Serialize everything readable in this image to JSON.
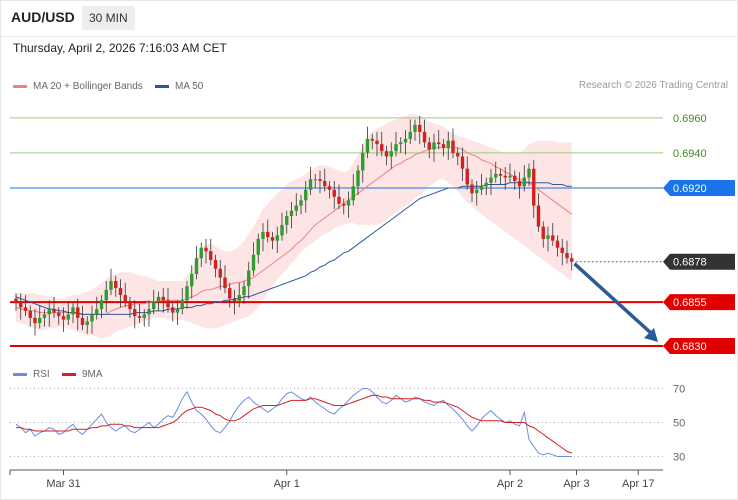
{
  "header": {
    "symbol": "AUD/USD",
    "timeframe": "30 MIN"
  },
  "datetime": "Thursday, April 2, 2026 7:16:03 AM CET",
  "copyright": "Research © 2026 Trading Central",
  "colors": {
    "ma20": "#f08080",
    "ma50": "#2c5aa0",
    "resistance": "#9acd7a",
    "pivot": "#1a73e8",
    "support": "#e00000",
    "bull": "#2e9d2e",
    "bear": "#d32020",
    "rsi": "#6a8fe0",
    "rsi_ma": "#d32020",
    "arrow": "#2c5a96"
  },
  "chart_data": [
    {
      "type": "candlestick",
      "legend": [
        {
          "name": "MA 20 + Bollinger Bands",
          "color": "#f08080"
        },
        {
          "name": "MA 50",
          "color": "#2c5aa0"
        }
      ],
      "ylim": [
        0.6822,
        0.6973
      ],
      "x_ticks": [
        {
          "label": "Mar 31",
          "index": 10
        },
        {
          "label": "Apr 1",
          "index": 57
        },
        {
          "label": "Apr 2",
          "index": 104
        },
        {
          "label": "Apr 3",
          "index": 118
        },
        {
          "label": "Apr 17",
          "index": 131
        }
      ],
      "levels": [
        {
          "label": "0.6960",
          "value": 0.696,
          "kind": "resistance"
        },
        {
          "label": "0.6940",
          "value": 0.694,
          "kind": "resistance"
        },
        {
          "label": "0.6920",
          "value": 0.692,
          "kind": "pivot"
        },
        {
          "label": "0.6878",
          "value": 0.6878,
          "kind": "last"
        },
        {
          "label": "0.6855",
          "value": 0.6855,
          "kind": "support"
        },
        {
          "label": "0.6830",
          "value": 0.683,
          "kind": "support"
        }
      ],
      "forecast_arrow": {
        "from_index": 118,
        "from": 0.6878,
        "to_index": 130,
        "to": 0.683
      },
      "close": [
        0.6855,
        0.6852,
        0.685,
        0.6846,
        0.6843,
        0.6846,
        0.6848,
        0.6851,
        0.6849,
        0.6847,
        0.6845,
        0.6848,
        0.6852,
        0.6846,
        0.6842,
        0.6844,
        0.6848,
        0.6851,
        0.6856,
        0.6862,
        0.6867,
        0.6863,
        0.6859,
        0.6855,
        0.6851,
        0.6847,
        0.6846,
        0.6848,
        0.6851,
        0.6855,
        0.6858,
        0.6856,
        0.6852,
        0.6849,
        0.6851,
        0.6856,
        0.6864,
        0.6871,
        0.688,
        0.6886,
        0.6884,
        0.6879,
        0.6874,
        0.6869,
        0.6863,
        0.6857,
        0.6855,
        0.6859,
        0.6864,
        0.6873,
        0.6882,
        0.6891,
        0.6895,
        0.6892,
        0.689,
        0.6893,
        0.6899,
        0.6904,
        0.6907,
        0.691,
        0.6913,
        0.6919,
        0.6925,
        0.6925,
        0.6924,
        0.6921,
        0.6919,
        0.6915,
        0.6911,
        0.691,
        0.6913,
        0.6921,
        0.693,
        0.694,
        0.6948,
        0.6947,
        0.6945,
        0.6941,
        0.6938,
        0.6941,
        0.6945,
        0.6946,
        0.6948,
        0.6952,
        0.6956,
        0.6952,
        0.6946,
        0.6942,
        0.6946,
        0.6945,
        0.6943,
        0.6947,
        0.694,
        0.6938,
        0.6931,
        0.6922,
        0.6917,
        0.6919,
        0.6921,
        0.6923,
        0.6926,
        0.6928,
        0.6927,
        0.6926,
        0.6927,
        0.6924,
        0.6921,
        0.6926,
        0.6931,
        0.691,
        0.6898,
        0.6891,
        0.6893,
        0.689,
        0.6886,
        0.6883,
        0.688,
        0.6878
      ],
      "ma20": [
        0.6852,
        0.6851,
        0.6851,
        0.685,
        0.685,
        0.6849,
        0.6849,
        0.6849,
        0.6849,
        0.6849,
        0.6849,
        0.6849,
        0.6849,
        0.6848,
        0.6848,
        0.6848,
        0.6848,
        0.6848,
        0.6848,
        0.6848,
        0.685,
        0.6851,
        0.6852,
        0.6853,
        0.6853,
        0.6854,
        0.6854,
        0.6854,
        0.6855,
        0.6855,
        0.6856,
        0.6856,
        0.6856,
        0.6856,
        0.6856,
        0.6856,
        0.6857,
        0.6858,
        0.6859,
        0.6861,
        0.6862,
        0.6862,
        0.6863,
        0.6864,
        0.6864,
        0.6865,
        0.6866,
        0.6866,
        0.6867,
        0.6868,
        0.6869,
        0.6871,
        0.6873,
        0.6875,
        0.6877,
        0.6879,
        0.6881,
        0.6883,
        0.6885,
        0.6888,
        0.689,
        0.6893,
        0.6896,
        0.6899,
        0.6901,
        0.6903,
        0.6905,
        0.6907,
        0.6909,
        0.6911,
        0.6913,
        0.6915,
        0.6917,
        0.6919,
        0.6921,
        0.6923,
        0.6925,
        0.6927,
        0.6929,
        0.6931,
        0.6933,
        0.6934,
        0.6936,
        0.6937,
        0.6939,
        0.694,
        0.6941,
        0.6942,
        0.6943,
        0.6943,
        0.6943,
        0.6943,
        0.6943,
        0.6943,
        0.6942,
        0.694,
        0.6939,
        0.6938,
        0.6936,
        0.6935,
        0.6934,
        0.6932,
        0.6931,
        0.6929,
        0.6928,
        0.6926,
        0.6925,
        0.6924,
        0.6923,
        0.6921,
        0.6919,
        0.6917,
        0.6915,
        0.6913,
        0.6911,
        0.6909,
        0.6907,
        0.6905
      ],
      "bb_upper": [
        0.686,
        0.686,
        0.686,
        0.686,
        0.686,
        0.6859,
        0.6859,
        0.6858,
        0.6858,
        0.6857,
        0.6857,
        0.6858,
        0.6859,
        0.6859,
        0.686,
        0.6861,
        0.6862,
        0.6864,
        0.6866,
        0.6868,
        0.687,
        0.6871,
        0.6872,
        0.6872,
        0.6872,
        0.6871,
        0.687,
        0.687,
        0.6869,
        0.6868,
        0.6867,
        0.6867,
        0.6867,
        0.6867,
        0.6867,
        0.6867,
        0.687,
        0.6874,
        0.688,
        0.6885,
        0.6888,
        0.6888,
        0.6887,
        0.6885,
        0.6884,
        0.6884,
        0.6885,
        0.6887,
        0.689,
        0.6894,
        0.6898,
        0.6903,
        0.6908,
        0.6911,
        0.6914,
        0.6917,
        0.6919,
        0.6922,
        0.6924,
        0.6925,
        0.6926,
        0.6928,
        0.693,
        0.6932,
        0.6933,
        0.6933,
        0.6932,
        0.6931,
        0.693,
        0.6929,
        0.693,
        0.6934,
        0.6939,
        0.6944,
        0.6949,
        0.6952,
        0.6954,
        0.6955,
        0.6957,
        0.6958,
        0.6959,
        0.696,
        0.6961,
        0.6962,
        0.6962,
        0.6961,
        0.696,
        0.6958,
        0.6957,
        0.6956,
        0.6955,
        0.6953,
        0.6951,
        0.695,
        0.6949,
        0.6948,
        0.6947,
        0.6946,
        0.6945,
        0.6944,
        0.6943,
        0.6942,
        0.6941,
        0.694,
        0.694,
        0.694,
        0.694,
        0.6942,
        0.6945,
        0.6946,
        0.6947,
        0.6947,
        0.6947,
        0.6947,
        0.6946,
        0.6946,
        0.6946,
        0.6946
      ],
      "bb_lower": [
        0.6844,
        0.6843,
        0.6842,
        0.6841,
        0.684,
        0.6839,
        0.6839,
        0.684,
        0.684,
        0.6841,
        0.6841,
        0.684,
        0.6839,
        0.6838,
        0.6837,
        0.6836,
        0.6836,
        0.6835,
        0.6834,
        0.6835,
        0.6836,
        0.6838,
        0.6839,
        0.684,
        0.6841,
        0.6842,
        0.6843,
        0.6844,
        0.6845,
        0.6846,
        0.6846,
        0.6846,
        0.6845,
        0.6845,
        0.6845,
        0.6845,
        0.6844,
        0.6843,
        0.6842,
        0.6841,
        0.684,
        0.684,
        0.684,
        0.6841,
        0.6842,
        0.6843,
        0.6844,
        0.6845,
        0.6846,
        0.6847,
        0.6849,
        0.6852,
        0.6856,
        0.686,
        0.6864,
        0.6868,
        0.6871,
        0.6874,
        0.6877,
        0.688,
        0.6883,
        0.6886,
        0.6888,
        0.689,
        0.6892,
        0.6894,
        0.6895,
        0.6897,
        0.6898,
        0.6899,
        0.69,
        0.69,
        0.6899,
        0.6899,
        0.6899,
        0.6899,
        0.6899,
        0.69,
        0.6902,
        0.6904,
        0.6906,
        0.6908,
        0.691,
        0.6912,
        0.6914,
        0.6916,
        0.6918,
        0.6921,
        0.6923,
        0.6925,
        0.6925,
        0.6923,
        0.6921,
        0.6918,
        0.6915,
        0.6912,
        0.691,
        0.6907,
        0.6905,
        0.6903,
        0.6901,
        0.6899,
        0.6897,
        0.6895,
        0.6893,
        0.6891,
        0.6889,
        0.6887,
        0.6885,
        0.6883,
        0.6881,
        0.6879,
        0.6877,
        0.6875,
        0.6873,
        0.6871,
        0.6869,
        0.6867
      ],
      "ma50": [
        0.6858,
        0.6857,
        0.6856,
        0.6855,
        0.6854,
        0.6853,
        0.6852,
        0.6851,
        0.6851,
        0.685,
        0.685,
        0.6849,
        0.6849,
        0.6849,
        0.6848,
        0.6848,
        0.6848,
        0.6848,
        0.6848,
        0.6848,
        0.6848,
        0.6848,
        0.6848,
        0.6848,
        0.6848,
        0.6849,
        0.6849,
        0.6849,
        0.6849,
        0.685,
        0.685,
        0.685,
        0.6851,
        0.6851,
        0.6851,
        0.6852,
        0.6852,
        0.6852,
        0.6853,
        0.6853,
        0.6854,
        0.6854,
        0.6855,
        0.6855,
        0.6856,
        0.6856,
        0.6857,
        0.6857,
        0.6858,
        0.6858,
        0.6859,
        0.686,
        0.6861,
        0.6862,
        0.6863,
        0.6864,
        0.6865,
        0.6866,
        0.6867,
        0.6868,
        0.6869,
        0.687,
        0.6872,
        0.6873,
        0.6875,
        0.6876,
        0.6878,
        0.6879,
        0.6881,
        0.6883,
        0.6884,
        0.6886,
        0.6888,
        0.689,
        0.6892,
        0.6894,
        0.6896,
        0.6898,
        0.69,
        0.6902,
        0.6904,
        0.6906,
        0.6908,
        0.691,
        0.6912,
        0.6914,
        0.6915,
        0.6916,
        0.6917,
        0.6918,
        0.6919,
        0.692,
        0.692,
        0.692,
        0.6921,
        0.6921,
        0.6921,
        0.6921,
        0.6921,
        0.6922,
        0.6922,
        0.6922,
        0.6922,
        0.6922,
        0.6923,
        0.6923,
        0.6923,
        0.6923,
        0.6923,
        0.6923,
        0.6923,
        0.6923,
        0.6923,
        0.6922,
        0.6922,
        0.6922,
        0.6921,
        0.6921
      ]
    },
    {
      "type": "line",
      "legend": [
        {
          "name": "RSI",
          "color": "#6a8fe0"
        },
        {
          "name": "9MA",
          "color": "#d32020"
        }
      ],
      "ylim": [
        25,
        75
      ],
      "y_ticks": [
        "70",
        "50",
        "30"
      ],
      "rsi": [
        49,
        47,
        44,
        46,
        42,
        44,
        45,
        47,
        46,
        43,
        44,
        47,
        49,
        45,
        43,
        46,
        49,
        52,
        55,
        50,
        47,
        45,
        47,
        48,
        45,
        44,
        46,
        48,
        50,
        47,
        49,
        52,
        54,
        53,
        58,
        64,
        68,
        62,
        57,
        55,
        52,
        48,
        45,
        44,
        47,
        51,
        56,
        60,
        63,
        65,
        62,
        60,
        58,
        56,
        58,
        60,
        64,
        67,
        68,
        66,
        64,
        63,
        65,
        62,
        60,
        58,
        56,
        55,
        58,
        60,
        63,
        66,
        68,
        70,
        70,
        68,
        65,
        62,
        61,
        63,
        66,
        64,
        62,
        63,
        65,
        64,
        62,
        61,
        60,
        62,
        63,
        60,
        58,
        55,
        52,
        48,
        45,
        48,
        52,
        55,
        57,
        54,
        52,
        50,
        51,
        49,
        48,
        56,
        40,
        36,
        32,
        31,
        32,
        31,
        30,
        30,
        30,
        30
      ],
      "ma9": [
        47,
        47,
        46,
        46,
        45,
        45,
        45,
        45,
        45,
        45,
        45,
        45,
        46,
        46,
        46,
        46,
        47,
        47,
        48,
        48,
        49,
        49,
        49,
        48,
        48,
        47,
        47,
        47,
        47,
        47,
        47,
        48,
        49,
        50,
        52,
        55,
        57,
        58,
        59,
        59,
        58,
        57,
        55,
        54,
        52,
        51,
        51,
        52,
        54,
        56,
        58,
        59,
        60,
        60,
        60,
        60,
        61,
        62,
        63,
        63,
        63,
        63,
        64,
        64,
        63,
        62,
        61,
        60,
        60,
        60,
        61,
        62,
        63,
        64,
        65,
        66,
        66,
        65,
        65,
        64,
        64,
        64,
        64,
        64,
        64,
        64,
        63,
        63,
        62,
        62,
        62,
        61,
        60,
        59,
        57,
        55,
        53,
        52,
        51,
        51,
        51,
        51,
        51,
        50,
        50,
        50,
        50,
        50,
        48,
        47,
        45,
        43,
        41,
        39,
        37,
        35,
        33,
        32
      ]
    }
  ]
}
